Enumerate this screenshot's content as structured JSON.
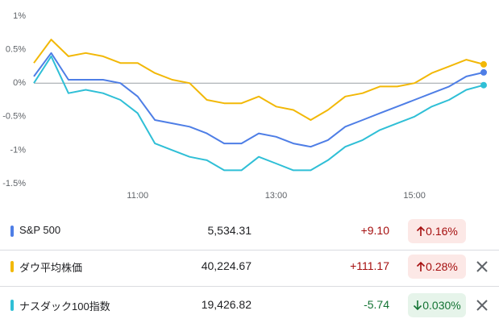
{
  "chart_data": {
    "type": "line",
    "x": [
      9.5,
      9.75,
      10.0,
      10.25,
      10.5,
      10.75,
      11.0,
      11.25,
      11.5,
      11.75,
      12.0,
      12.25,
      12.5,
      12.75,
      13.0,
      13.25,
      13.5,
      13.75,
      14.0,
      14.25,
      14.5,
      14.75,
      15.0,
      15.25,
      15.5,
      15.75,
      16.0
    ],
    "xlim": [
      9.5,
      16.0
    ],
    "xticks": [
      {
        "value": 11,
        "label": "11:00"
      },
      {
        "value": 13,
        "label": "13:00"
      },
      {
        "value": 15,
        "label": "15:00"
      }
    ],
    "ylim": [
      -1.5,
      1
    ],
    "yticks": [
      {
        "value": 1,
        "label": "1%"
      },
      {
        "value": 0.5,
        "label": "0.5%"
      },
      {
        "value": 0,
        "label": "0%"
      },
      {
        "value": -0.5,
        "label": "-0.5%"
      },
      {
        "value": -1,
        "label": "-1%"
      },
      {
        "value": -1.5,
        "label": "-1.5%"
      }
    ],
    "series": [
      {
        "name": "S&P 500",
        "color": "#4e7ee6",
        "values": [
          0.1,
          0.45,
          0.05,
          0.05,
          0.05,
          0.0,
          -0.2,
          -0.55,
          -0.6,
          -0.65,
          -0.75,
          -0.9,
          -0.9,
          -0.75,
          -0.8,
          -0.9,
          -0.95,
          -0.85,
          -0.65,
          -0.55,
          -0.45,
          -0.35,
          -0.25,
          -0.15,
          -0.05,
          0.1,
          0.16
        ]
      },
      {
        "name": "ダウ平均株価",
        "color": "#f2b807",
        "values": [
          0.3,
          0.65,
          0.4,
          0.45,
          0.4,
          0.3,
          0.3,
          0.15,
          0.05,
          0.0,
          -0.25,
          -0.3,
          -0.3,
          -0.2,
          -0.35,
          -0.4,
          -0.55,
          -0.4,
          -0.2,
          -0.15,
          -0.05,
          -0.05,
          0.0,
          0.15,
          0.25,
          0.35,
          0.28
        ]
      },
      {
        "name": "ナスダック100指数",
        "color": "#2fbfd6",
        "values": [
          0.0,
          0.4,
          -0.15,
          -0.1,
          -0.15,
          -0.25,
          -0.45,
          -0.9,
          -1.0,
          -1.1,
          -1.15,
          -1.3,
          -1.3,
          -1.1,
          -1.2,
          -1.3,
          -1.3,
          -1.15,
          -0.95,
          -0.85,
          -0.7,
          -0.6,
          -0.5,
          -0.35,
          -0.25,
          -0.1,
          -0.03
        ]
      }
    ]
  },
  "table": {
    "rows": [
      {
        "price": "5,534.31",
        "change": "+9.10",
        "percent": "0.16%",
        "direction": "up",
        "removable": false
      },
      {
        "price": "40,224.67",
        "change": "+111.17",
        "percent": "0.28%",
        "direction": "up",
        "removable": true
      },
      {
        "price": "19,426.82",
        "change": "-5.74",
        "percent": "0.030%",
        "direction": "down",
        "removable": true
      }
    ]
  }
}
